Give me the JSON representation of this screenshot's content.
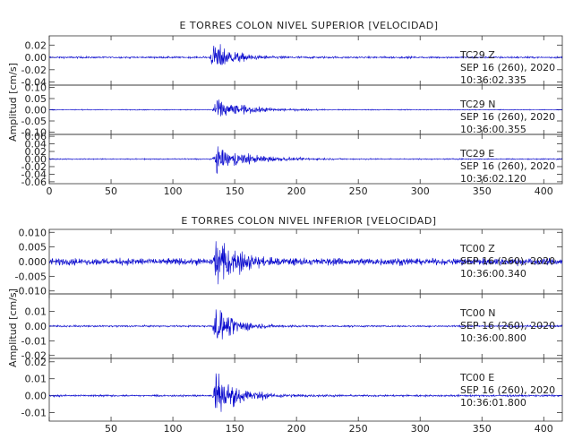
{
  "chart_data": [
    {
      "type": "line",
      "title": "E TORRES COLON NIVEL SUPERIOR [VELOCIDAD]",
      "ylabel": "Amplitud [cm/s]",
      "xlim": [
        0,
        415
      ],
      "xticks": [
        "0",
        "50",
        "100",
        "150",
        "200",
        "250",
        "300",
        "350",
        "400"
      ],
      "panels": [
        {
          "station": "TC29",
          "component": "Z",
          "date": "SEP 16 (260), 2020",
          "time": "10:36:02.335",
          "ylim": [
            -0.045,
            0.035
          ],
          "yticks": [
            0.02,
            0.0,
            -0.02,
            -0.04
          ],
          "ytick_labels": [
            "0.02",
            "0.00",
            "-0.02",
            "-0.04"
          ],
          "noise": 0.0015,
          "peak": 0.03,
          "arrival": 130,
          "decay": 15
        },
        {
          "station": "TC29",
          "component": "N",
          "date": "SEP 16 (260), 2020",
          "time": "10:36:00.355",
          "ylim": [
            -0.11,
            0.11
          ],
          "yticks": [
            0.1,
            0.05,
            0.0,
            -0.05,
            -0.1
          ],
          "ytick_labels": [
            "0.10",
            "0.05",
            "0.00",
            "-0.05",
            "-0.10"
          ],
          "noise": 0.002,
          "peak": 0.06,
          "arrival": 132,
          "decay": 22
        },
        {
          "station": "TC29",
          "component": "E",
          "date": "SEP 16 (260), 2020",
          "time": "10:36:02.120",
          "ylim": [
            -0.065,
            0.065
          ],
          "yticks": [
            0.06,
            0.04,
            0.02,
            0.0,
            -0.02,
            -0.04,
            -0.06
          ],
          "ytick_labels": [
            "0.06",
            "0.04",
            "0.02",
            "0.00",
            "-0.02",
            "-0.04",
            "-0.06"
          ],
          "noise": 0.0015,
          "peak": 0.04,
          "arrival": 132,
          "decay": 25
        }
      ]
    },
    {
      "type": "line",
      "title": "E TORRES COLON NIVEL INFERIOR [VELOCIDAD]",
      "ylabel": "Amplitud [cm/s]",
      "xlim": [
        0,
        415
      ],
      "xticks": [
        "50",
        "100",
        "150",
        "200",
        "250",
        "300",
        "350",
        "400"
      ],
      "panels": [
        {
          "station": "TC00",
          "component": "Z",
          "date": "SEP 16 (260), 2020",
          "time": "10:36:00.340",
          "ylim": [
            -0.011,
            0.011
          ],
          "yticks": [
            0.01,
            0.005,
            0.0,
            -0.005,
            -0.01
          ],
          "ytick_labels": [
            "0.010",
            "0.005",
            "0.000",
            "-0.005",
            "-0.010"
          ],
          "noise": 0.0012,
          "peak": 0.009,
          "arrival": 132,
          "decay": 18
        },
        {
          "station": "TC00",
          "component": "N",
          "date": "SEP 16 (260), 2020",
          "time": "10:36:00.800",
          "ylim": [
            -0.022,
            0.022
          ],
          "yticks": [
            0.01,
            0.0,
            -0.01,
            -0.02
          ],
          "ytick_labels": [
            "0.01",
            "0.00",
            "-0.01",
            "-0.02"
          ],
          "noise": 0.0006,
          "peak": 0.018,
          "arrival": 132,
          "decay": 14
        },
        {
          "station": "TC00",
          "component": "E",
          "date": "SEP 16 (260), 2020",
          "time": "10:36:01.800",
          "ylim": [
            -0.015,
            0.022
          ],
          "yticks": [
            0.02,
            0.01,
            0.0,
            -0.01
          ],
          "ytick_labels": [
            "0.02",
            "0.01",
            "0.00",
            "-0.01"
          ],
          "noise": 0.0006,
          "peak": 0.02,
          "arrival": 132,
          "decay": 16
        }
      ]
    }
  ]
}
